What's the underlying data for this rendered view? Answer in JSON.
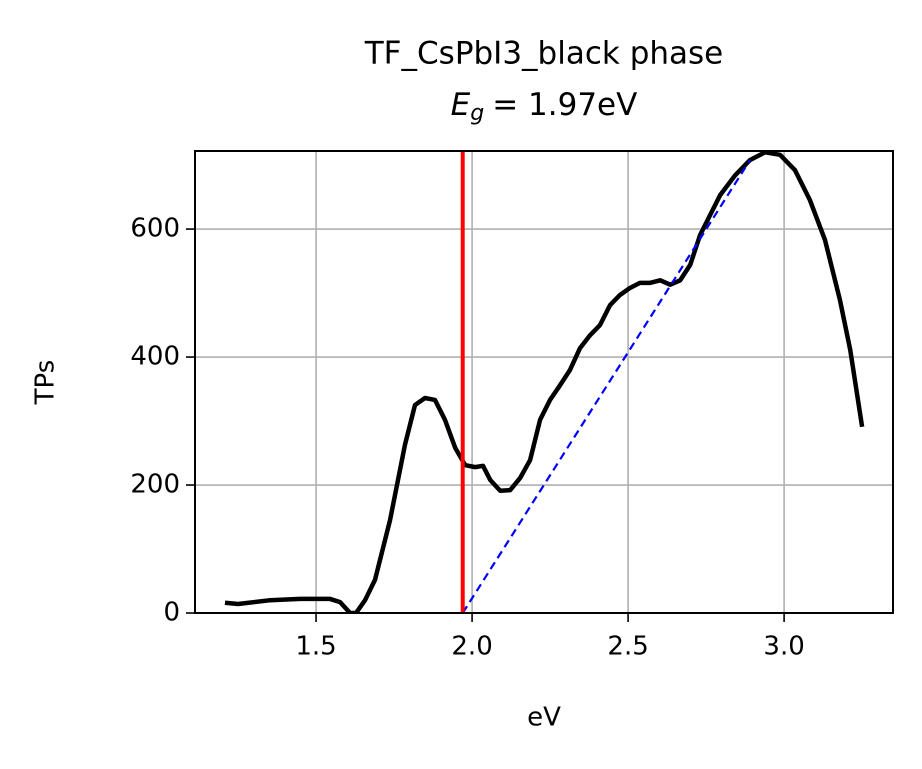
{
  "chart_data": {
    "type": "line",
    "title": "TF_CsPbI3_black phase",
    "band_gap_label": {
      "symbol": "E",
      "subscript": "g",
      "text": "= 1.97eV"
    },
    "band_gap": 1.97,
    "band_gap_color": "red",
    "x_label": "eV",
    "y_label": "TPs",
    "xlim": [
      1.112,
      3.349
    ],
    "ylim": [
      0,
      722
    ],
    "xticks": [
      1.5,
      {
        "value": 2.0,
        "label": "2.0"
      },
      2.5,
      {
        "value": 3.0,
        "label": "3.0"
      }
    ],
    "yticks": [
      0,
      200,
      400,
      600
    ],
    "grid": true,
    "series": [
      {
        "color": "black",
        "style": "solid",
        "x": [
          1.208,
          1.25,
          1.353,
          1.449,
          1.545,
          1.577,
          1.609,
          1.628,
          1.657,
          1.689,
          1.737,
          1.785,
          1.817,
          1.849,
          1.881,
          1.913,
          1.946,
          1.978,
          2.01,
          2.035,
          2.058,
          2.09,
          2.122,
          2.154,
          2.186,
          2.218,
          2.25,
          2.282,
          2.314,
          2.346,
          2.378,
          2.41,
          2.442,
          2.474,
          2.506,
          2.538,
          2.571,
          2.603,
          2.635,
          2.667,
          2.699,
          2.731,
          2.763,
          2.795,
          2.843,
          2.891,
          2.939,
          2.987,
          3.035,
          3.083,
          3.131,
          3.179,
          3.212,
          3.25
        ],
        "values": [
          16,
          14,
          20,
          22,
          22,
          17,
          0,
          0,
          20,
          52,
          145,
          263,
          325,
          336,
          333,
          302,
          258,
          231,
          228,
          230,
          208,
          191,
          192,
          211,
          239,
          302,
          333,
          356,
          380,
          414,
          434,
          450,
          481,
          497,
          508,
          516,
          516,
          520,
          513,
          520,
          544,
          591,
          622,
          653,
          684,
          708,
          720,
          716,
          692,
          645,
          583,
          489,
          411,
          291
        ]
      },
      {
        "color": "blue",
        "style": "dashed",
        "x": [
          1.97,
          2.891
        ],
        "values": [
          0,
          708
        ]
      }
    ]
  }
}
